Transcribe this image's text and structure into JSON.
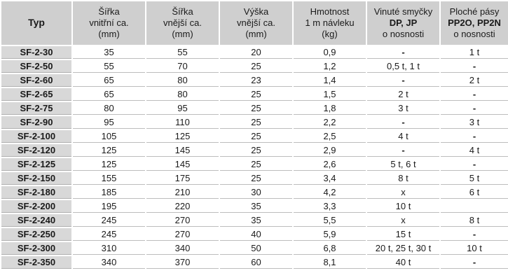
{
  "table": {
    "headers": {
      "typ": "Typ",
      "sirka_vnitrni": [
        "Šířka",
        "vnitřní ca.",
        "(mm)"
      ],
      "sirka_vnejsi": [
        "Šířka",
        "vnější ca.",
        "(mm)"
      ],
      "vyska_vnejsi": [
        "Výška",
        "vnější ca.",
        "(mm)"
      ],
      "hmotnost": [
        "Hmotnost",
        "1 m návleku",
        "(kg)"
      ],
      "vinute": [
        "Vinuté smyčky",
        "DP, JP",
        "o nosnosti"
      ],
      "ploche": [
        "Ploché pásy",
        "PP2O, PP2N",
        "o nosnosti"
      ]
    },
    "rows": [
      [
        "SF-2-30",
        "35",
        "55",
        "20",
        "0,9",
        "-",
        "1 t"
      ],
      [
        "SF-2-50",
        "55",
        "70",
        "25",
        "1,2",
        "0,5 t, 1 t",
        "-"
      ],
      [
        "SF-2-60",
        "65",
        "80",
        "23",
        "1,4",
        "-",
        "2 t"
      ],
      [
        "SF-2-65",
        "65",
        "80",
        "25",
        "1,5",
        "2 t",
        "-"
      ],
      [
        "SF-2-75",
        "80",
        "95",
        "25",
        "1,8",
        "3 t",
        "-"
      ],
      [
        "SF-2-90",
        "95",
        "110",
        "25",
        "2,2",
        "-",
        "3 t"
      ],
      [
        "SF-2-100",
        "105",
        "125",
        "25",
        "2,5",
        "4 t",
        "-"
      ],
      [
        "SF-2-120",
        "125",
        "145",
        "25",
        "2,9",
        "-",
        "4 t"
      ],
      [
        "SF-2-125",
        "125",
        "145",
        "25",
        "2,6",
        "5 t, 6 t",
        "-"
      ],
      [
        "SF-2-150",
        "155",
        "175",
        "25",
        "3,4",
        "8 t",
        "5 t"
      ],
      [
        "SF-2-180",
        "185",
        "210",
        "30",
        "4,2",
        "x",
        "6 t"
      ],
      [
        "SF-2-200",
        "195",
        "220",
        "35",
        "3,3",
        "10 t",
        ""
      ],
      [
        "SF-2-240",
        "245",
        "270",
        "35",
        "5,5",
        "x",
        "8 t"
      ],
      [
        "SF-2-250",
        "245",
        "270",
        "40",
        "5,9",
        "15 t",
        "-"
      ],
      [
        "SF-2-300",
        "310",
        "340",
        "50",
        "6,8",
        "20 t, 25 t, 30 t",
        "10 t"
      ],
      [
        "SF-2-350",
        "340",
        "370",
        "60",
        "8,1",
        "40 t",
        "-"
      ]
    ]
  }
}
